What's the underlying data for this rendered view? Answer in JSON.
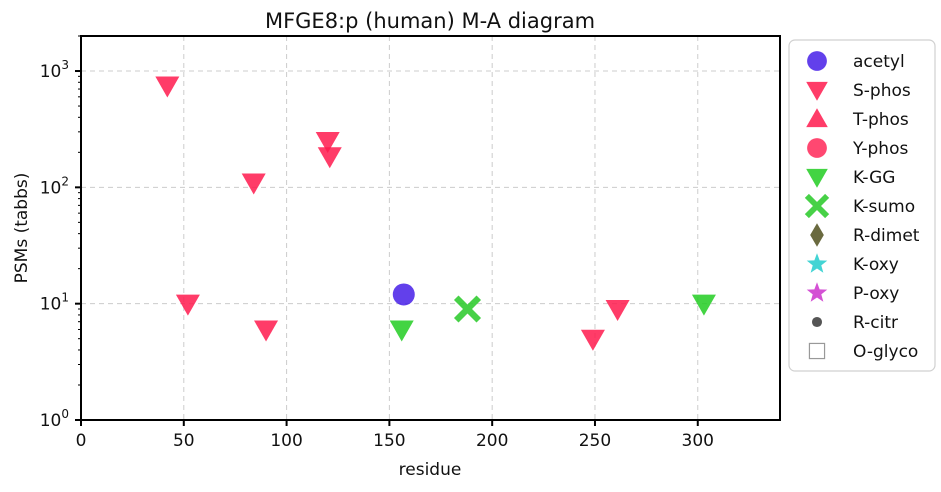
{
  "chart_data": {
    "type": "scatter",
    "title": "MFGE8:p (human) M-A diagram",
    "xlabel": "residue",
    "ylabel": "PSMs (tabbs)",
    "xlim": [
      0,
      340
    ],
    "ylim": [
      1,
      2000
    ],
    "yscale": "log",
    "grid": true,
    "legend_position": "outside right",
    "x_ticks": [
      0,
      50,
      100,
      150,
      200,
      250,
      300
    ],
    "x_tick_labels": [
      "0",
      "50",
      "100",
      "150",
      "200",
      "250",
      "300"
    ],
    "y_ticks": [
      1,
      10,
      100,
      1000
    ],
    "y_tick_labels": [
      {
        "base": "10",
        "exp": "0"
      },
      {
        "base": "10",
        "exp": "1"
      },
      {
        "base": "10",
        "exp": "2"
      },
      {
        "base": "10",
        "exp": "3"
      }
    ],
    "series": [
      {
        "name": "acetyl",
        "marker": "circle",
        "color": "#3b10e6",
        "points": [
          [
            157,
            12
          ]
        ]
      },
      {
        "name": "S-phos",
        "marker": "triangle-down",
        "color": "#ff1a4d",
        "points": [
          [
            42,
            750
          ],
          [
            52,
            10
          ],
          [
            84,
            110
          ],
          [
            90,
            6
          ],
          [
            120,
            250
          ],
          [
            121,
            185
          ],
          [
            249,
            5
          ],
          [
            261,
            9
          ]
        ]
      },
      {
        "name": "T-phos",
        "marker": "triangle-up",
        "color": "#ff1a4d",
        "points": []
      },
      {
        "name": "Y-phos",
        "marker": "circle",
        "color": "#ff1a4d",
        "points": []
      },
      {
        "name": "K-GG",
        "marker": "triangle-down",
        "color": "#22cc22",
        "points": [
          [
            156,
            6
          ],
          [
            303,
            10
          ]
        ]
      },
      {
        "name": "K-sumo",
        "marker": "x",
        "color": "#33cc33",
        "points": [
          [
            188,
            9
          ]
        ]
      },
      {
        "name": "R-dimet",
        "marker": "diamond",
        "color": "#5a5a2a",
        "points": []
      },
      {
        "name": "K-oxy",
        "marker": "star",
        "color": "#22cccc",
        "points": []
      },
      {
        "name": "P-oxy",
        "marker": "star",
        "color": "#cc33cc",
        "points": []
      },
      {
        "name": "R-citr",
        "marker": "dot",
        "color": "#555555",
        "points": []
      },
      {
        "name": "O-glyco",
        "marker": "square-open",
        "color": "#999999",
        "points": []
      }
    ]
  }
}
